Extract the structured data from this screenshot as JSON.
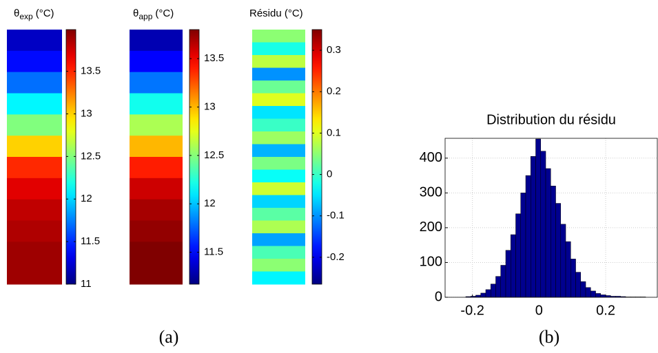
{
  "chart_data": [
    {
      "type": "heatmap",
      "title": "θ",
      "title_sub": "exp",
      "title_unit": "(°C)",
      "row_values": [
        11.2,
        11.4,
        11.7,
        12.1,
        12.5,
        13.0,
        13.5,
        13.7,
        13.8,
        13.85,
        13.9,
        13.9
      ],
      "clim": [
        11,
        13.99
      ],
      "ticks": [
        11,
        11.5,
        12,
        12.5,
        13,
        13.5
      ]
    },
    {
      "type": "heatmap",
      "title": "θ",
      "title_sub": "app",
      "title_unit": "(°C)",
      "row_values": [
        11.3,
        11.5,
        11.8,
        12.2,
        12.6,
        13.0,
        13.4,
        13.6,
        13.7,
        13.75,
        13.8,
        13.8
      ],
      "clim": [
        11.17,
        13.8
      ],
      "ticks": [
        11.5,
        12,
        12.5,
        13,
        13.5
      ]
    },
    {
      "type": "heatmap",
      "title": "Résidu (°C)",
      "row_values": [
        0.05,
        -0.02,
        0.08,
        -0.1,
        0.03,
        0.1,
        -0.05,
        0.0,
        0.06,
        -0.08,
        0.04,
        -0.03,
        0.09,
        -0.06,
        0.02,
        0.07,
        -0.09,
        0.01,
        0.05,
        -0.04
      ],
      "clim": [
        -0.265,
        0.35
      ],
      "ticks": [
        -0.2,
        -0.1,
        0,
        0.1,
        0.2,
        0.3
      ]
    },
    {
      "type": "histogram",
      "title": "Distribution du résidu",
      "color": "#00008f",
      "bins": [
        -0.22,
        -0.205,
        -0.19,
        -0.175,
        -0.16,
        -0.145,
        -0.13,
        -0.115,
        -0.1,
        -0.085,
        -0.07,
        -0.055,
        -0.04,
        -0.025,
        -0.01,
        0.005,
        0.02,
        0.035,
        0.05,
        0.065,
        0.08,
        0.095,
        0.11,
        0.125,
        0.14,
        0.155,
        0.17,
        0.185,
        0.2,
        0.215,
        0.23,
        0.245,
        0.26,
        0.275,
        0.29,
        0.305,
        0.32
      ],
      "values": [
        2,
        3,
        6,
        12,
        22,
        38,
        60,
        92,
        135,
        180,
        240,
        300,
        350,
        405,
        455,
        420,
        370,
        320,
        270,
        210,
        160,
        110,
        72,
        45,
        28,
        18,
        11,
        7,
        5,
        3,
        3,
        2,
        1,
        1,
        1,
        1
      ],
      "xlim": [
        -0.282,
        0.355
      ],
      "ylim": [
        0,
        457
      ],
      "xticks": [
        -0.2,
        0,
        0.2
      ],
      "yticks": [
        0,
        100,
        200,
        300,
        400
      ],
      "grid": true
    }
  ],
  "panel_labels": [
    "(a)",
    "(b)"
  ]
}
